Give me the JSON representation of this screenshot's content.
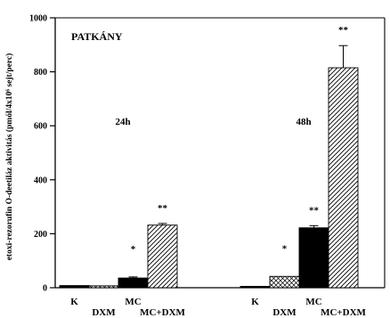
{
  "chart_data": {
    "type": "bar",
    "title": "PATKÁNY",
    "ylabel": "etoxi-rezorufin O-deetiláz aktivitás (pmól/4x10⁶ sejt/perc)",
    "xlabel": "",
    "ylim": [
      0,
      1000
    ],
    "yticks": [
      "0",
      "200",
      "400",
      "600",
      "800",
      "1000"
    ],
    "grid": false,
    "legend": "none",
    "groups": [
      {
        "label": "24h",
        "bars": [
          {
            "category": "K",
            "value": 8,
            "error": 0,
            "pattern": "black",
            "sig": ""
          },
          {
            "category": "DXM",
            "value": 7,
            "error": 0,
            "pattern": "crosshatch",
            "sig": ""
          },
          {
            "category": "MC",
            "value": 36,
            "error": 4,
            "pattern": "black",
            "sig": "*"
          },
          {
            "category": "MC+DXM",
            "value": 232,
            "error": 6,
            "pattern": "diagonal",
            "sig": "**"
          }
        ]
      },
      {
        "label": "48h",
        "bars": [
          {
            "category": "K",
            "value": 5,
            "error": 0,
            "pattern": "black",
            "sig": ""
          },
          {
            "category": "DXM",
            "value": 42,
            "error": 0,
            "pattern": "crosshatch",
            "sig": "*"
          },
          {
            "category": "MC",
            "value": 222,
            "error": 8,
            "pattern": "black",
            "sig": "**"
          },
          {
            "category": "MC+DXM",
            "value": 815,
            "error": 82,
            "pattern": "diagonal",
            "sig": "**"
          }
        ]
      }
    ]
  }
}
